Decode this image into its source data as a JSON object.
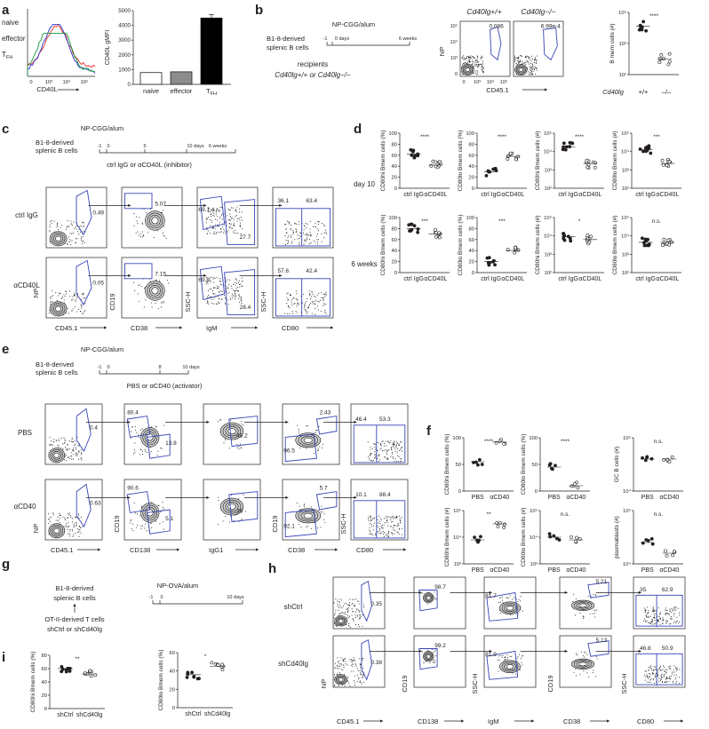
{
  "panels": {
    "a": {
      "letter": "a",
      "histogram": {
        "xlabel": "CD40L",
        "xticks": [
          "0",
          "10³",
          "10⁴",
          "10⁵"
        ],
        "legend": [
          {
            "label": "naive",
            "color": "#e8302a"
          },
          {
            "label": "effector",
            "color": "#2b35c8"
          },
          {
            "label": "T",
            "sub": "FH",
            "color": "#159a3c"
          }
        ]
      },
      "bar": {
        "ylabel": "CD40L gMFI",
        "categories": [
          "naive",
          "effector",
          "T"
        ],
        "cat3_sub": "FH",
        "values": [
          800,
          850,
          4500
        ],
        "fills": [
          "#ffffff",
          "#8c8c8c",
          "#000000"
        ],
        "yticks": [
          "0",
          "1000",
          "2000",
          "3000",
          "4000",
          "5000"
        ],
        "ylim": [
          0,
          5000
        ]
      }
    },
    "b": {
      "letter": "b",
      "schematic": {
        "immunization": "NP-CGG/alum",
        "cells": [
          "B1-8-derived",
          "splenic B cells"
        ],
        "days": [
          "-1",
          "0 days",
          "6 weeks"
        ],
        "recipients": "recipients",
        "recipients2": "Cd40lg+/+ or Cd40lg−/−"
      },
      "flow": {
        "titles": [
          "Cd40lg+/+",
          "Cd40lg−/−"
        ],
        "gates": [
          "0.086",
          "6.99e-4"
        ],
        "ylabel": "NP",
        "xlabel": "CD45.1",
        "yticks": [
          "0",
          "10³",
          "10⁴",
          "10⁵"
        ],
        "xticks": [
          "0",
          "10³",
          "10⁴",
          "10⁵"
        ]
      },
      "dot": {
        "ylabel": "B mem cells (#)",
        "yticks": [
          "10¹",
          "10³",
          "10⁵"
        ],
        "sig": "****",
        "row_label": "Cd40lg",
        "groups": [
          "+/+",
          "–/–"
        ]
      }
    },
    "c": {
      "letter": "c",
      "schematic": {
        "immunization": "NP-CGG/alum",
        "cells": [
          "B1-8-derived",
          "splenic B cells"
        ],
        "days": [
          "-1",
          "0",
          "5",
          "10 days",
          "6 weeks"
        ],
        "treatment": "ctrl IgG or αCD40L (inhibitor)"
      },
      "rows": [
        "ctrl IgG",
        "αCD40L"
      ],
      "gates": {
        "np": [
          "0.49",
          "0.05"
        ],
        "cd19": [
          "5.07",
          "7.15"
        ],
        "igm": [
          [
            "69.1",
            "27.7"
          ],
          [
            "69.8",
            "28.4"
          ]
        ],
        "cd80": [
          [
            "36.1",
            "63.4"
          ],
          [
            "57.6",
            "42.4"
          ]
        ]
      },
      "xlabels": [
        "CD45.1",
        "CD38",
        "IgM",
        "CD80"
      ],
      "ylabels": [
        "NP",
        "CD19",
        "SSC-H",
        "SSC-H"
      ]
    },
    "d": {
      "letter": "d",
      "rows": [
        "day 10",
        "6 weeks"
      ],
      "groups": [
        "ctrl IgG",
        "αCD40L"
      ],
      "plots": [
        {
          "ylabel": "CD80hi Bmem cells (%)",
          "yticks": [
            "100",
            "80",
            "60",
            "40",
            "20",
            "0"
          ],
          "sig": "****"
        },
        {
          "ylabel": "CD80lo Bmem cells (%)",
          "yticks": [
            "100",
            "80",
            "60",
            "40",
            "20",
            "0"
          ],
          "sig": "****"
        },
        {
          "ylabel": "CD80hi Bmem cells (#)",
          "yticks": [
            "10⁵",
            "10⁴",
            "10³",
            "10²"
          ],
          "sig": "****"
        },
        {
          "ylabel": "CD80lo Bmem cells (#)",
          "yticks": [
            "10⁵",
            "10⁴",
            "10³",
            "10²"
          ],
          "sig": "***"
        },
        {
          "ylabel": "CD80hi Bmem cells (%)",
          "yticks": [
            "100",
            "80",
            "60",
            "40",
            "20",
            "0"
          ],
          "sig": "***"
        },
        {
          "ylabel": "CD80lo Bmem cells (%)",
          "yticks": [
            "100",
            "80",
            "60",
            "40",
            "20",
            "0"
          ],
          "sig": "***"
        },
        {
          "ylabel": "CD80hi Bmem cells (#)",
          "yticks": [
            "10⁵",
            "10⁴",
            "10³",
            "10²"
          ],
          "sig": "*"
        },
        {
          "ylabel": "CD80lo Bmem cells (#)",
          "yticks": [
            "10⁵",
            "10⁴",
            "10³",
            "10²"
          ],
          "sig": "n.s."
        }
      ]
    },
    "e": {
      "letter": "e",
      "schematic": {
        "immunization": "NP-CGG/alum",
        "cells": [
          "B1-8-derived",
          "splenic B cells"
        ],
        "days": [
          "-1",
          "0",
          "8",
          "10 days"
        ],
        "treatment": "PBS or αCD40 (activator)"
      },
      "rows": [
        "PBS",
        "αCD40"
      ],
      "gates": {
        "np": [
          "0.4",
          "0.63"
        ],
        "cd138": [
          [
            "80.4",
            "13.8"
          ],
          [
            "90.6",
            "5.1"
          ]
        ],
        "igg1": [
          "48.2",
          "36"
        ],
        "cd38": [
          [
            "2.43",
            "96.5"
          ],
          [
            "5.7",
            "92.1"
          ]
        ],
        "cd80": [
          [
            "46.4",
            "53.3"
          ],
          [
            "10.1",
            "88.4"
          ]
        ]
      },
      "xlabels": [
        "CD45.1",
        "CD138",
        "IgG1",
        "CD38",
        "CD80"
      ],
      "ylabels": [
        "NP",
        "CD19",
        "",
        "CD19",
        "SSC-H"
      ]
    },
    "f": {
      "letter": "f",
      "groups": [
        "PBS",
        "αCD40"
      ],
      "plots": [
        {
          "ylabel": "CD80hi Bmem cells (%)",
          "yticks": [
            "100",
            "50",
            "0"
          ],
          "sig": "****"
        },
        {
          "ylabel": "CD80lo Bmem cells (%)",
          "yticks": [
            "100",
            "50",
            "0"
          ],
          "sig": "****"
        },
        {
          "ylabel": "GC B cells (#)",
          "yticks": [
            "10⁵",
            "10⁴"
          ],
          "sig": "n.s."
        },
        {
          "ylabel": "CD80hi Bmem cells (#)",
          "yticks": [
            "10⁵",
            "10⁴",
            "10³"
          ],
          "sig": "**"
        },
        {
          "ylabel": "CD80lo Bmem cells (#)",
          "yticks": [
            "10⁵",
            "10⁴",
            "10³"
          ],
          "sig": "n.s."
        },
        {
          "ylabel": "plasmablasts (#)",
          "yticks": [
            "10⁵",
            "10⁴"
          ],
          "sig": "n.s."
        }
      ]
    },
    "g": {
      "letter": "g",
      "schematic": {
        "immunization": "NP-OVA/alum",
        "cells": [
          "B1-8-derived",
          "splenic B cells"
        ],
        "tcells": [
          "OT-II-derived T cells",
          "shCtrl or shCd40lg"
        ],
        "days": [
          "-1",
          "0",
          "10 days"
        ]
      }
    },
    "h": {
      "letter": "h",
      "rows": [
        "shCtrl",
        "shCd40lg"
      ],
      "gates": {
        "np": [
          "0.35",
          "0.38"
        ],
        "cd138": [
          "98.7",
          "99.2"
        ],
        "igm": [
          "81.7",
          "81.9"
        ],
        "cd38": [
          "5.21",
          "5.13"
        ],
        "cd80": [
          [
            "35",
            "62.9"
          ],
          [
            "46.8",
            "50.9"
          ]
        ]
      },
      "xlabels": [
        "CD45.1",
        "CD138",
        "IgM",
        "CD38",
        "CD80"
      ],
      "ylabels": [
        "NP",
        "CD19",
        "SSC-H",
        "CD19",
        "SSC-H"
      ]
    },
    "i": {
      "letter": "i",
      "groups": [
        "shCtrl",
        "shCd40lg"
      ],
      "plots": [
        {
          "ylabel": "CD80hi Bmem cells (%)",
          "yticks": [
            "80",
            "60",
            "40",
            "20",
            "0"
          ],
          "sig": "**"
        },
        {
          "ylabel": "CD80lo Bmem cells (%)",
          "yticks": [
            "60",
            "40",
            "20",
            "0"
          ],
          "sig": "*"
        }
      ]
    }
  },
  "chart_data": [
    {
      "type": "bar",
      "categories": [
        "naive",
        "effector",
        "TFH"
      ],
      "values": [
        800,
        850,
        4500
      ],
      "xlabel": "",
      "ylabel": "CD40L gMFI",
      "ylim": [
        0,
        5000
      ]
    }
  ]
}
